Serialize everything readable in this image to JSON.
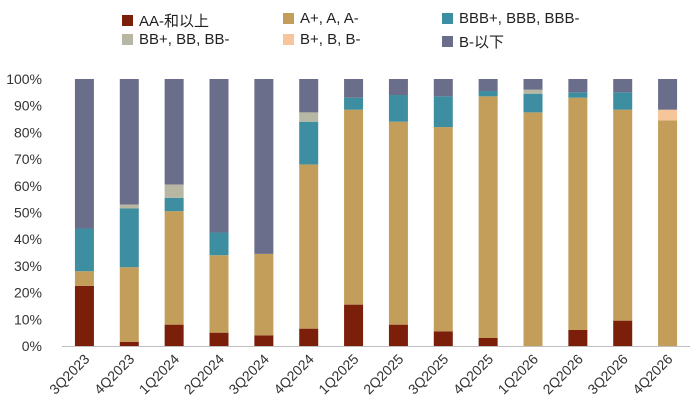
{
  "chart_data": {
    "type": "bar",
    "stacked": true,
    "percent": true,
    "categories": [
      "3Q2023",
      "4Q2023",
      "1Q2024",
      "2Q2024",
      "3Q2024",
      "4Q2024",
      "1Q2025",
      "2Q2025",
      "3Q2025",
      "4Q2025",
      "1Q2026",
      "2Q2026",
      "3Q2026",
      "4Q2026"
    ],
    "series": [
      {
        "name": "AA-和以上",
        "color": "#7B1F0A",
        "values": [
          22.5,
          1.5,
          8,
          5,
          4,
          6.5,
          15.5,
          8,
          5.5,
          3,
          0,
          6,
          9.5,
          0
        ]
      },
      {
        "name": "A+, A, A-",
        "color": "#C39D5A",
        "values": [
          5.5,
          28,
          42.5,
          29,
          30.5,
          61.5,
          73,
          76,
          76.5,
          90.5,
          87.5,
          87,
          79,
          84.5
        ]
      },
      {
        "name": "BBB+, BBB, BBB-",
        "color": "#3D8EA0",
        "values": [
          16,
          22,
          5,
          8.5,
          0,
          16,
          4.5,
          10,
          11.5,
          2,
          7,
          2,
          6.5,
          0
        ]
      },
      {
        "name": "BB+, BB, BB-",
        "color": "#B7B7A4",
        "values": [
          0,
          1.5,
          5,
          0,
          0,
          3.5,
          0,
          0,
          0,
          0,
          1.5,
          0,
          0,
          0
        ]
      },
      {
        "name": "B+, B, B-",
        "color": "#F7C59A",
        "values": [
          0,
          0,
          0,
          0,
          0,
          0,
          0,
          0,
          0,
          0,
          0,
          0,
          0,
          4
        ]
      },
      {
        "name": "B-以下",
        "color": "#6A6E8A",
        "values": [
          56,
          47,
          39.5,
          57.5,
          65.5,
          12.5,
          7,
          6,
          6.5,
          4.5,
          4,
          5,
          5,
          11.5
        ]
      }
    ],
    "ylim": [
      0,
      100
    ],
    "yticks": [
      "0%",
      "10%",
      "20%",
      "30%",
      "40%",
      "50%",
      "60%",
      "70%",
      "80%",
      "90%",
      "100%"
    ],
    "legend_position": "top",
    "grid": false
  }
}
